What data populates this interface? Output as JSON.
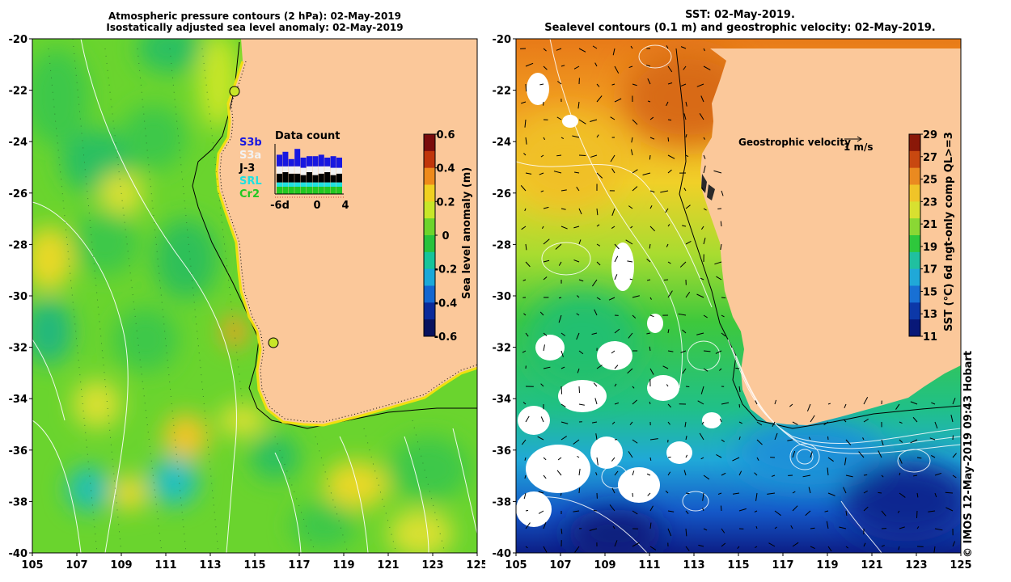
{
  "left_panel": {
    "title_line1": "Atmospheric pressure contours (2 hPa): 02-May-2019",
    "title_line2": "Isostatically adjusted sea level anomaly: 02-May-2019",
    "lat_ticks": [
      "-20",
      "-22",
      "-24",
      "-26",
      "-28",
      "-30",
      "-32",
      "-34",
      "-36",
      "-38",
      "-40"
    ],
    "lon_ticks": [
      "105",
      "107",
      "109",
      "111",
      "113",
      "115",
      "117",
      "119",
      "121",
      "123",
      "125"
    ],
    "colorbar": {
      "label": "Sea level anomaly (m)",
      "ticks": [
        "0.6",
        "0.4",
        "0.2",
        "0",
        "-0.2",
        "-0.4",
        "-0.6"
      ],
      "colors": [
        "#7a0c0c",
        "#c0350a",
        "#ee8a1a",
        "#f0d020",
        "#c8e628",
        "#6cd42c",
        "#28c23c",
        "#16c49a",
        "#1aa8d8",
        "#1266d0",
        "#0a2a9a",
        "#08125e"
      ]
    },
    "data_count": {
      "title": "Data count",
      "missions": [
        {
          "name": "S3b",
          "color": "#1818e0"
        },
        {
          "name": "S3a",
          "color": "#f2f2f2"
        },
        {
          "name": "J-3",
          "color": "#000000"
        },
        {
          "name": "SRL",
          "color": "#20e0e0"
        },
        {
          "name": "Cr2",
          "color": "#22c822"
        }
      ],
      "x_ticks": [
        "-6d",
        "0",
        "4"
      ]
    }
  },
  "right_panel": {
    "title_line1": "SST: 02-May-2019.",
    "title_line2": "Sealevel contours (0.1 m) and geostrophic velocity: 02-May-2019.",
    "velocity_legend_label": "Geostrophic velocity",
    "velocity_scale_label": "1 m/s",
    "lat_ticks": [
      "-20",
      "-22",
      "-24",
      "-26",
      "-28",
      "-30",
      "-32",
      "-34",
      "-36",
      "-38",
      "-40"
    ],
    "lon_ticks": [
      "105",
      "107",
      "109",
      "111",
      "113",
      "115",
      "117",
      "119",
      "121",
      "123",
      "125"
    ],
    "colorbar": {
      "label": "SST (°C) 6d ngt-only comp QL>=3",
      "ticks": [
        "29",
        "27",
        "25",
        "23",
        "21",
        "19",
        "17",
        "15",
        "13",
        "11"
      ],
      "colors": [
        "#8a1808",
        "#c84810",
        "#ea8a20",
        "#f0c428",
        "#d8e030",
        "#8ad834",
        "#2ec83c",
        "#20c0a0",
        "#20a8d8",
        "#1870d4",
        "#0c38a8",
        "#081878"
      ]
    }
  },
  "credit": "© IMOS 12-May-2019 09:43 Hobart"
}
